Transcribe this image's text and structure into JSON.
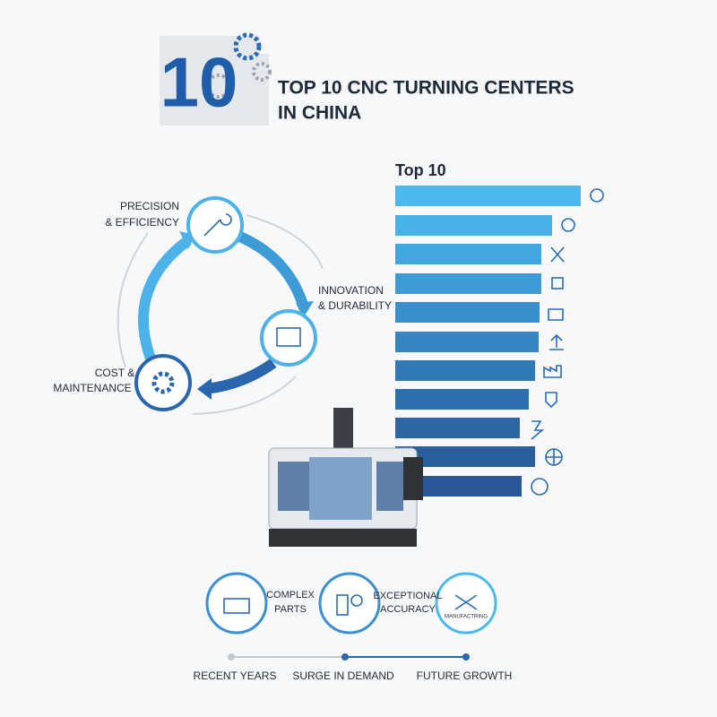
{
  "logo": {
    "text": "10"
  },
  "header": {
    "title_lines": [
      "TOP 10 CNC TURNING CENTERS",
      "IN CHINA"
    ]
  },
  "ranking": {
    "title": "Top 10"
  },
  "cycle": {
    "nodes": [
      {
        "label_lines": [
          "PRECISION",
          "& EFFICIENCY"
        ]
      },
      {
        "label_lines": [
          "INNOVATION",
          "& DURABILITY"
        ]
      },
      {
        "label_lines": [
          "COST &",
          "MAINTENANCE"
        ]
      }
    ]
  },
  "features": [
    {
      "label_lines": [
        "COMPLEX",
        "PARTS"
      ]
    },
    {
      "label_lines": [
        "EXCEPTIONAL",
        "ACCURACY"
      ]
    },
    {
      "badge": "MANUFACTRING"
    }
  ],
  "timeline": {
    "steps": [
      "RECENT YEARS",
      "SURGE IN DEMAND",
      "FUTURE GROWTH"
    ]
  }
}
